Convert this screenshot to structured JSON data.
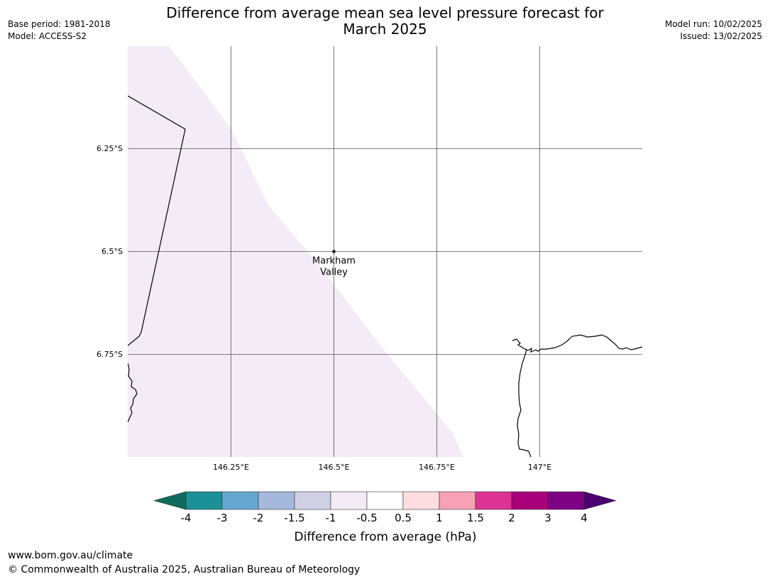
{
  "header": {
    "title_line1": "Difference from average mean sea level pressure forecast for",
    "title_line2": "March 2025",
    "base_period": "Base period: 1981-2018",
    "model": "Model: ACCESS-S2",
    "model_run": "Model run: 10/02/2025",
    "issued": "Issued: 13/02/2025"
  },
  "map": {
    "lat_labels": [
      "6.25°S",
      "6.5°S",
      "6.75°S"
    ],
    "lon_labels": [
      "146.25°E",
      "146.5°E",
      "146.75°E",
      "147°E"
    ],
    "place": {
      "name_line1": "Markham",
      "name_line2": "Valley",
      "lat": -6.5,
      "lon": 146.5
    },
    "shaded_region_color": "#f3ebf5",
    "coastline_color": "#000000",
    "gridline_color": "#555555"
  },
  "colorbar": {
    "title": "Difference from average (hPa)",
    "tick_labels": [
      "-4",
      "-3",
      "-2",
      "-1.5",
      "-1",
      "-0.5",
      "0.5",
      "1",
      "1.5",
      "2",
      "3",
      "4"
    ],
    "under_color": "#0e6b5e",
    "over_color": "#4a0070",
    "colors": [
      "#1b9096",
      "#66a8d0",
      "#a5b9dc",
      "#d0d0e5",
      "#f3ebf5",
      "#ffffff",
      "#fddde0",
      "#f7a1b6",
      "#dc3395",
      "#a8007a",
      "#7e0083"
    ]
  },
  "footer": {
    "url": "www.bom.gov.au/climate",
    "copyright": "© Commonwealth of Australia 2025, Australian Bureau of Meteorology"
  }
}
